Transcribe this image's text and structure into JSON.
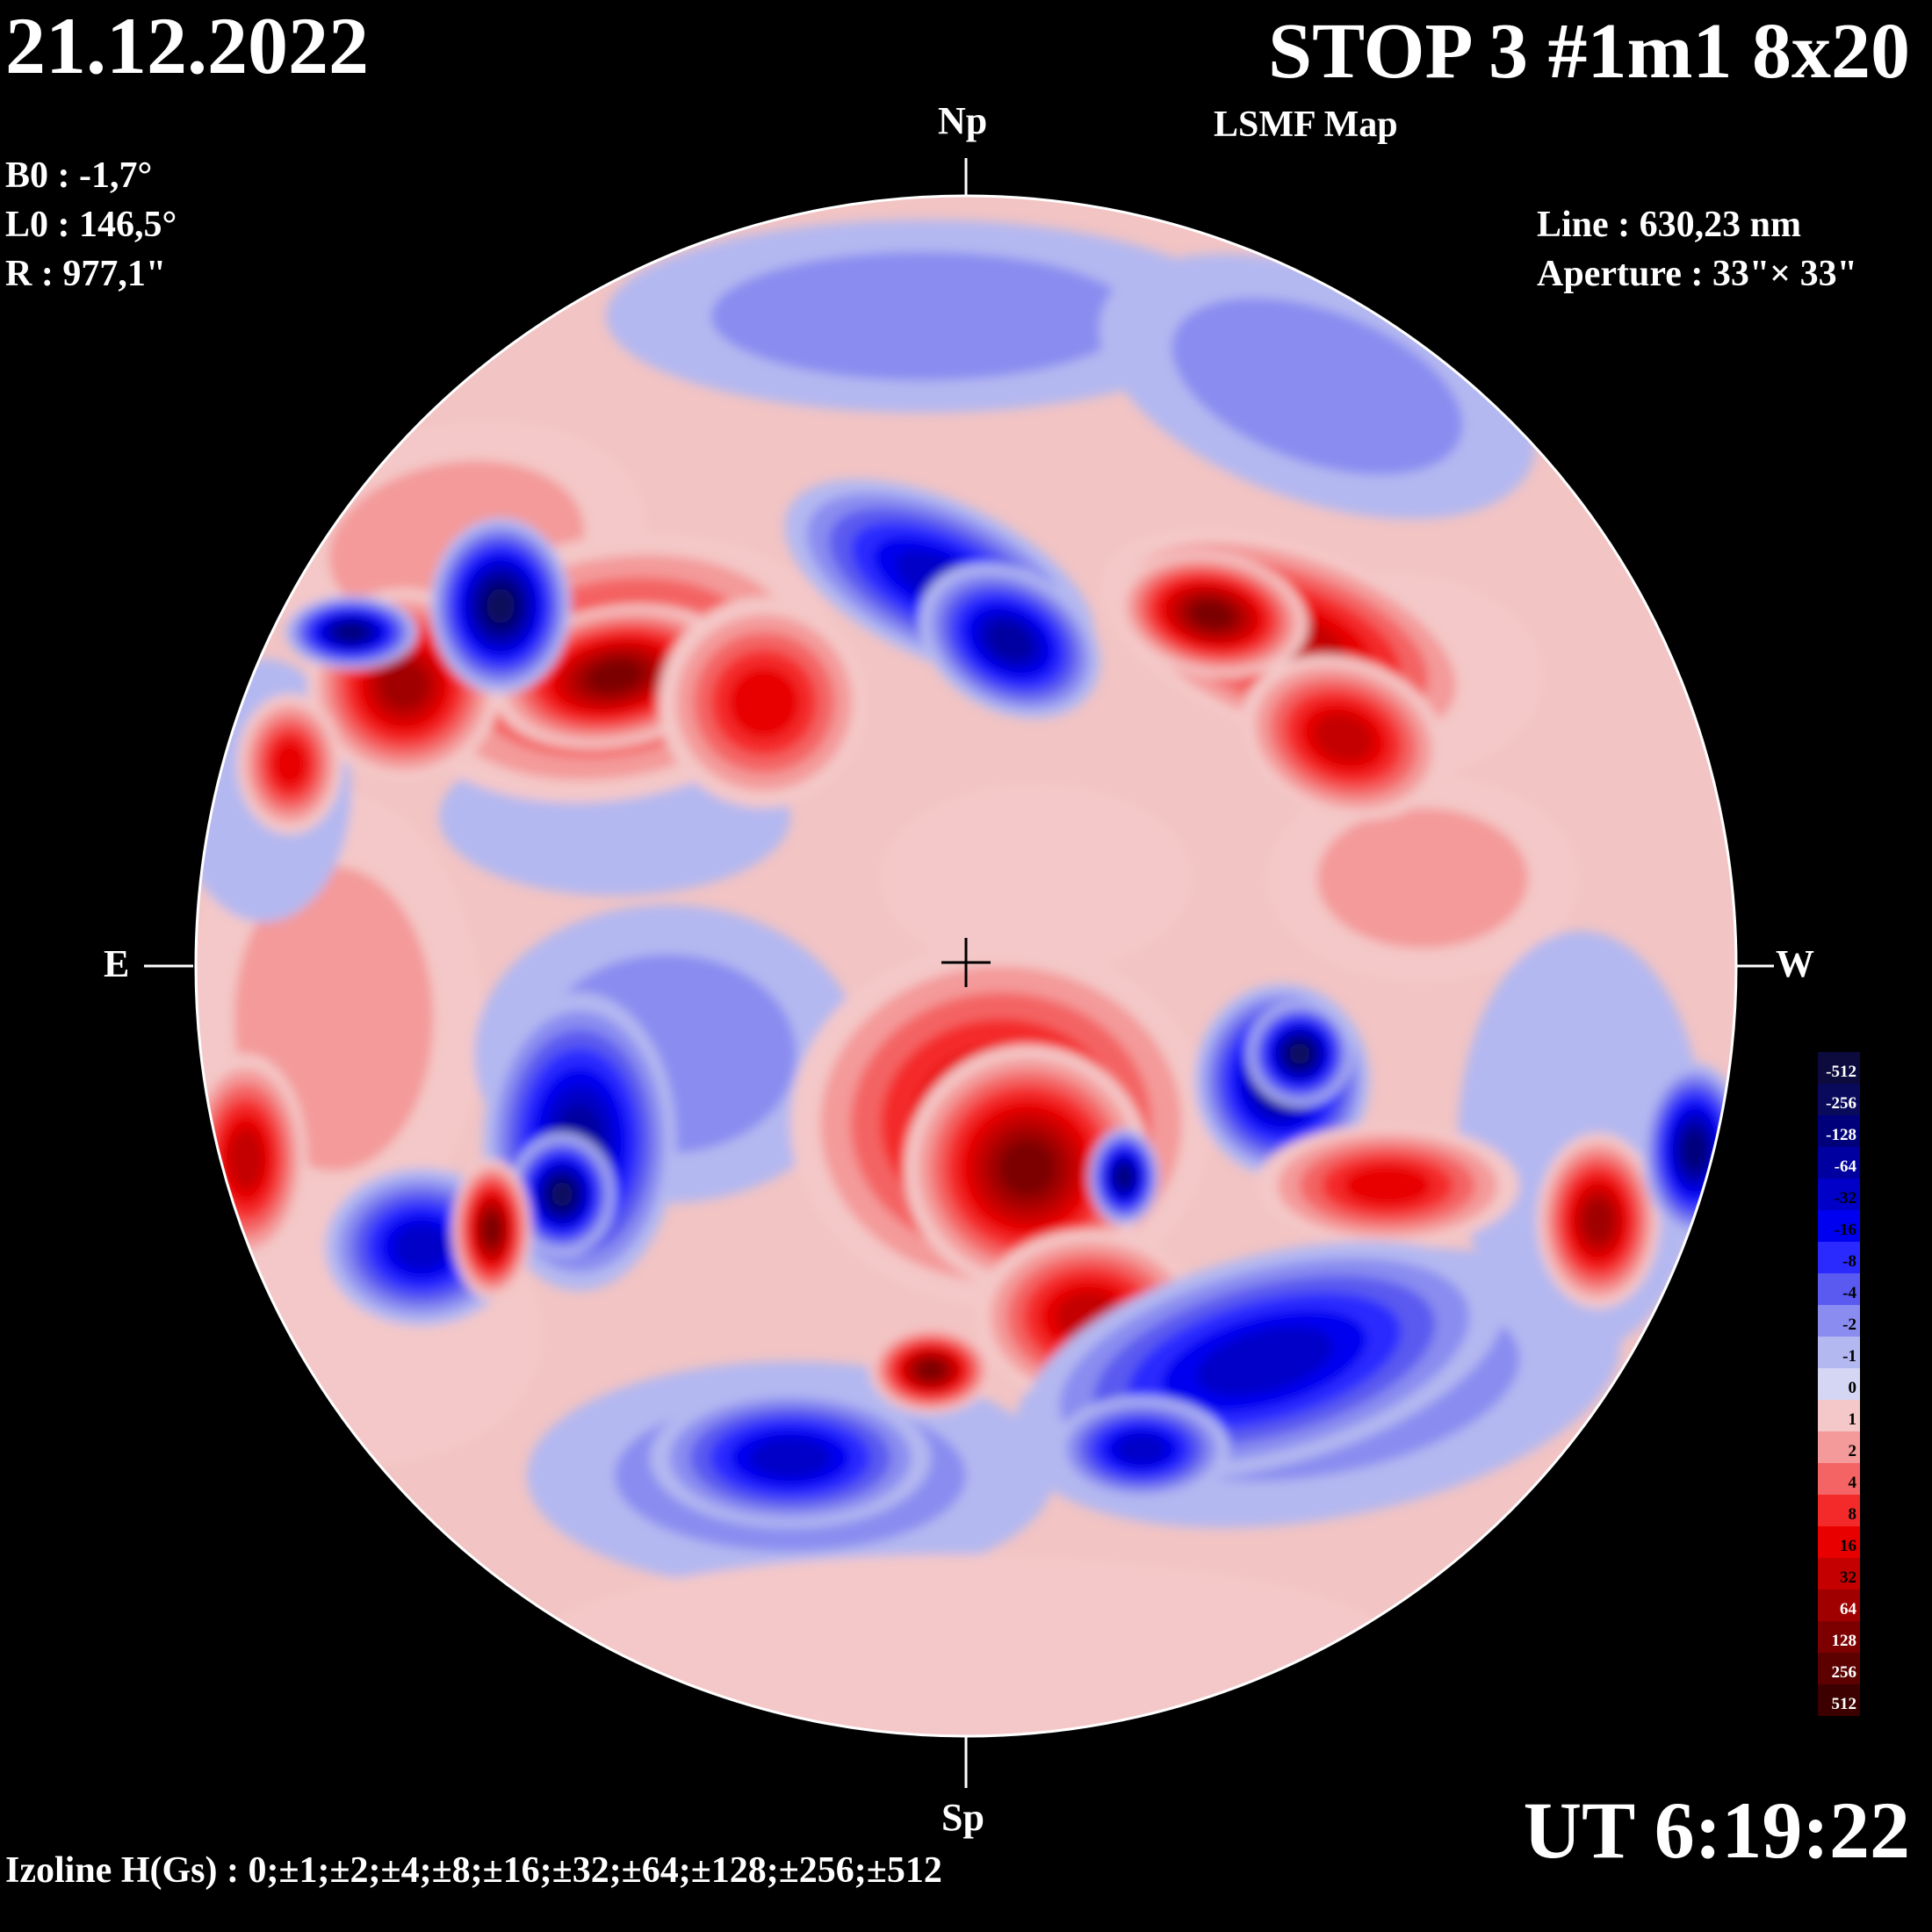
{
  "header": {
    "date": "21.12.2022",
    "title": "STOP 3 #1m1 8x20",
    "subtitle": "LSMF  Map"
  },
  "params": {
    "b0": "B0 : -1,7°",
    "l0": "L0 : 146,5°",
    "r": "R  : 977,1\"",
    "line": "Line :  630,23 nm",
    "aperture": "Aperture : 33\"× 33\""
  },
  "compass": {
    "north": "Np",
    "south": "Sp",
    "east": "E",
    "west": "W"
  },
  "footer": {
    "time": "UT 6:19:22",
    "izoline": "Izoline H(Gs) : 0;±1;±2;±4;±8;±16;±32;±64;±128;±256;±512"
  },
  "legend": {
    "levels": [
      {
        "label": "-512",
        "color": "#0d0b3d"
      },
      {
        "label": "-256",
        "color": "#0a0a5c"
      },
      {
        "label": "-128",
        "color": "#00007a"
      },
      {
        "label": "-64",
        "color": "#0000a0"
      },
      {
        "label": "-32",
        "color": "#0000c8"
      },
      {
        "label": "-16",
        "color": "#0000f0"
      },
      {
        "label": "-8",
        "color": "#2a2aff"
      },
      {
        "label": "-4",
        "color": "#5a5af0"
      },
      {
        "label": "-2",
        "color": "#8a8cf0"
      },
      {
        "label": "-1",
        "color": "#b4b8f0"
      },
      {
        "label": "0",
        "color": "#d4d6f4"
      },
      {
        "label": "1",
        "color": "#f4c8c8"
      },
      {
        "label": "2",
        "color": "#f49a9a"
      },
      {
        "label": "4",
        "color": "#f46464"
      },
      {
        "label": "8",
        "color": "#f42a2a"
      },
      {
        "label": "16",
        "color": "#e80000"
      },
      {
        "label": "32",
        "color": "#c40000"
      },
      {
        "label": "64",
        "color": "#a00000"
      },
      {
        "label": "128",
        "color": "#7c0000"
      },
      {
        "label": "256",
        "color": "#5c0000"
      },
      {
        "label": "512",
        "color": "#3c0000"
      }
    ]
  },
  "colors": {
    "background": "#000000",
    "disk_base": "#f0c6c6",
    "isoline": "#ffffff"
  }
}
